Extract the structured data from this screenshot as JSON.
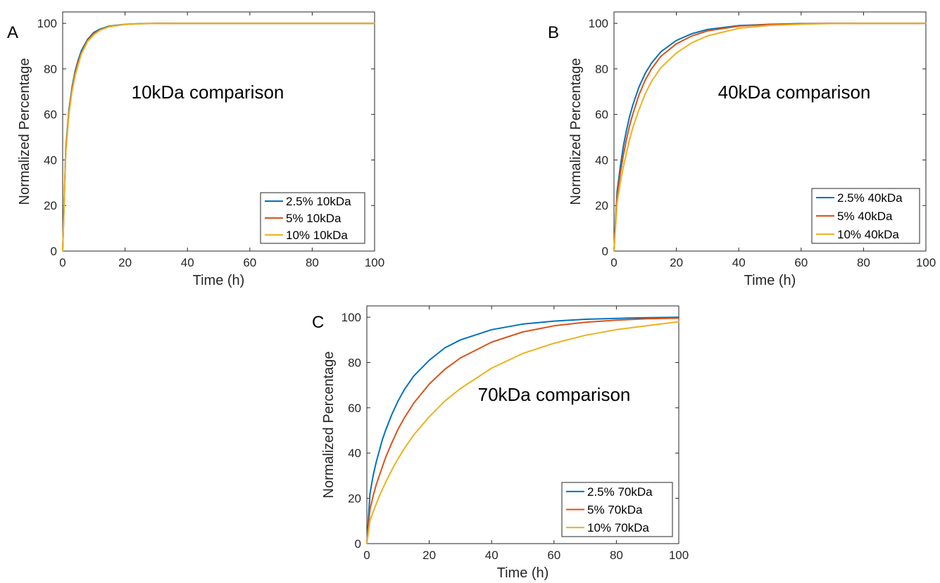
{
  "chart_data": [
    {
      "panel": "A",
      "type": "line",
      "annotation": "10kDa comparison",
      "xlabel": "Time (h)",
      "ylabel": "Normalized Percentage",
      "xlim": [
        0,
        100
      ],
      "ylim": [
        0,
        105
      ],
      "xticks": [
        0,
        20,
        40,
        60,
        80,
        100
      ],
      "yticks": [
        0,
        20,
        40,
        60,
        80,
        100
      ],
      "legend_position": "bottom-right",
      "x": [
        0,
        1,
        2,
        3,
        4,
        5,
        6,
        8,
        10,
        12,
        15,
        20,
        25,
        30,
        40,
        50,
        60,
        70,
        80,
        90,
        100
      ],
      "series": [
        {
          "name": "2.5% 10kDa",
          "color": "#0072BD",
          "values": [
            0,
            45,
            62,
            72,
            79,
            84,
            88,
            93,
            96,
            97.5,
            98.8,
            99.6,
            99.9,
            100,
            100,
            100,
            100,
            100,
            100,
            100,
            100
          ]
        },
        {
          "name": "5% 10kDa",
          "color": "#D95319",
          "values": [
            0,
            44,
            61,
            71,
            78,
            83,
            87,
            92.5,
            95.5,
            97.2,
            98.6,
            99.5,
            99.85,
            100,
            100,
            100,
            100,
            100,
            100,
            100,
            100
          ]
        },
        {
          "name": "10% 10kDa",
          "color": "#EDB120",
          "values": [
            0,
            43,
            60,
            70,
            77,
            82,
            86.5,
            92,
            95,
            97,
            98.5,
            99.5,
            99.8,
            99.95,
            100,
            100,
            100,
            100,
            100,
            100,
            100
          ]
        }
      ]
    },
    {
      "panel": "B",
      "type": "line",
      "annotation": "40kDa comparison",
      "xlabel": "Time (h)",
      "ylabel": "Normalized Percentage",
      "xlim": [
        0,
        100
      ],
      "ylim": [
        0,
        105
      ],
      "xticks": [
        0,
        20,
        40,
        60,
        80,
        100
      ],
      "yticks": [
        0,
        20,
        40,
        60,
        80,
        100
      ],
      "legend_position": "bottom-right",
      "x": [
        0,
        1,
        2,
        3,
        4,
        5,
        6,
        8,
        10,
        12,
        15,
        20,
        25,
        30,
        40,
        50,
        60,
        70,
        80,
        90,
        100
      ],
      "series": [
        {
          "name": "2.5% 40kDa",
          "color": "#0072BD",
          "values": [
            0,
            26,
            37,
            46,
            53,
            59,
            64,
            72,
            78,
            82.5,
            87.5,
            92.5,
            95.5,
            97.3,
            99,
            99.6,
            99.9,
            100,
            100,
            100,
            100
          ]
        },
        {
          "name": "5% 40kDa",
          "color": "#D95319",
          "values": [
            0,
            24,
            34,
            42,
            49,
            55,
            60,
            68.5,
            75,
            80,
            85.5,
            91,
            94.5,
            96.7,
            98.8,
            99.5,
            99.8,
            100,
            100,
            100,
            100
          ]
        },
        {
          "name": "10% 40kDa",
          "color": "#EDB120",
          "values": [
            0,
            21,
            30,
            37,
            43,
            49,
            54,
            62,
            69,
            74.5,
            80.5,
            87,
            91.5,
            94.5,
            97.8,
            99.1,
            99.6,
            99.9,
            100,
            100,
            100
          ]
        }
      ]
    },
    {
      "panel": "C",
      "type": "line",
      "annotation": "70kDa comparison",
      "xlabel": "Time (h)",
      "ylabel": "Normalized Percentage",
      "xlim": [
        0,
        100
      ],
      "ylim": [
        0,
        105
      ],
      "xticks": [
        0,
        20,
        40,
        60,
        80,
        100
      ],
      "yticks": [
        0,
        20,
        40,
        60,
        80,
        100
      ],
      "legend_position": "bottom-right",
      "x": [
        0,
        1,
        2,
        3,
        4,
        5,
        6,
        8,
        10,
        12,
        15,
        20,
        25,
        30,
        40,
        50,
        60,
        70,
        80,
        90,
        100
      ],
      "series": [
        {
          "name": "2.5% 70kDa",
          "color": "#0072BD",
          "values": [
            0,
            22,
            30,
            36,
            41,
            46,
            50,
            57,
            63,
            68,
            74,
            81,
            86.5,
            90,
            94.5,
            97,
            98.3,
            99.1,
            99.5,
            99.8,
            100
          ]
        },
        {
          "name": "5% 70kDa",
          "color": "#D95319",
          "values": [
            0,
            15,
            21,
            26,
            30,
            34,
            38,
            44.5,
            50.5,
            55.5,
            62,
            70.5,
            77,
            82,
            89,
            93.5,
            96.2,
            97.8,
            98.7,
            99.3,
            99.6
          ]
        },
        {
          "name": "10% 70kDa",
          "color": "#EDB120",
          "values": [
            0,
            10,
            14,
            17.5,
            21,
            24,
            27,
            32.5,
            37.5,
            42,
            48,
            56,
            63,
            68.5,
            77.5,
            84,
            88.5,
            92,
            94.5,
            96.3,
            98
          ]
        }
      ]
    }
  ]
}
